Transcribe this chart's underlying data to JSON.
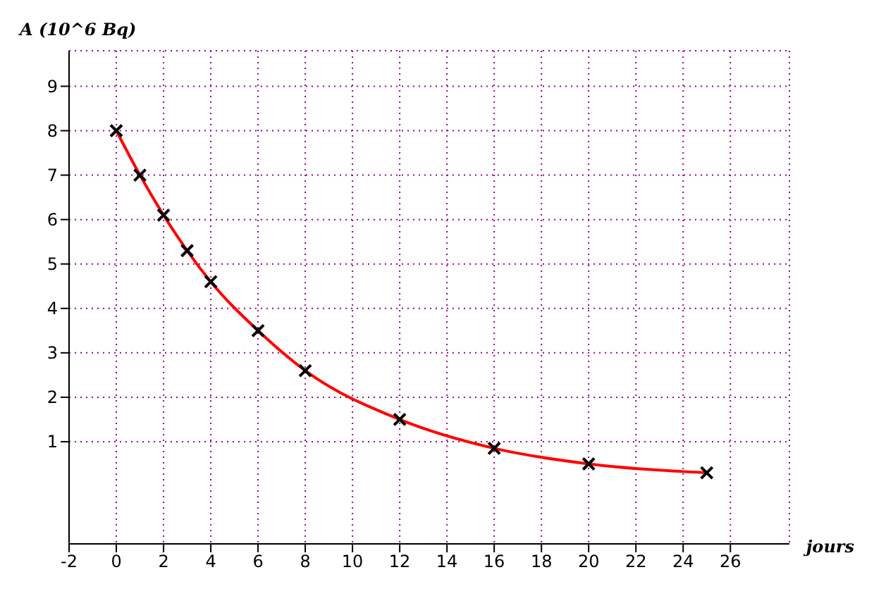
{
  "chart_data": {
    "type": "line",
    "xlabel": "jours",
    "ylabel": "A (10^6 Bq)",
    "x": [
      0,
      1,
      2,
      3,
      4,
      6,
      8,
      12,
      16,
      20,
      25
    ],
    "series": [
      {
        "color": "#ff0000",
        "values": [
          8,
          7,
          6.1,
          5.3,
          4.6,
          3.5,
          2.6,
          1.5,
          0.85,
          0.5,
          0.3
        ]
      }
    ],
    "xlim": [
      -2,
      28.5
    ],
    "ylim": [
      -1.3,
      9.8
    ],
    "xticks": [
      -2,
      0,
      2,
      4,
      6,
      8,
      10,
      12,
      14,
      16,
      18,
      20,
      22,
      24,
      26
    ],
    "yticks": [
      1,
      2,
      3,
      4,
      5,
      6,
      7,
      8,
      9
    ],
    "grid": true,
    "marker": "cross",
    "line_style": "solid"
  }
}
